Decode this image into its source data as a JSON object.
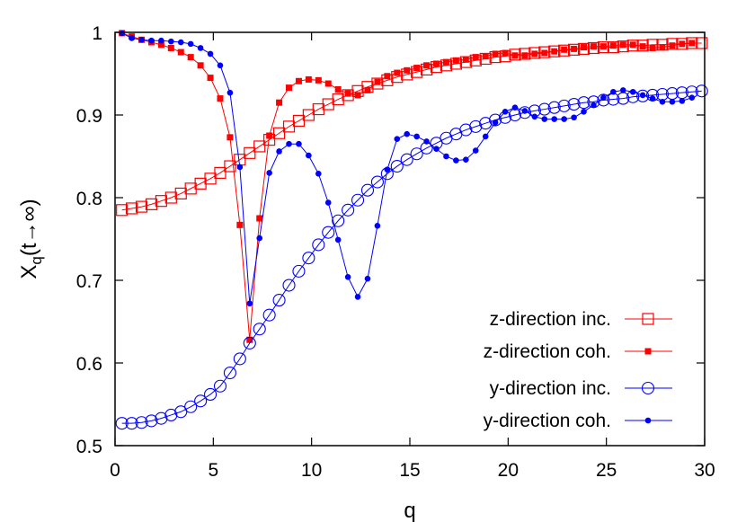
{
  "chart_data": {
    "type": "line",
    "title": "",
    "xlabel": "q",
    "ylabel_main": "X",
    "ylabel_sub": "q",
    "ylabel_rest": "(t→∞)",
    "xlim": [
      0,
      30
    ],
    "ylim": [
      0.5,
      1
    ],
    "xticks": [
      "0",
      "5",
      "10",
      "15",
      "20",
      "25",
      "30"
    ],
    "yticks": [
      "0.5",
      "0.6",
      "0.7",
      "0.8",
      "0.9",
      "1"
    ],
    "grid": false,
    "legend_position": "bottom-right",
    "q_start": 0.35,
    "q_step": 0.5,
    "series": [
      {
        "name": "z-direction inc.",
        "color": "#ff0000",
        "marker": "open-square",
        "values": [
          0.785,
          0.787,
          0.789,
          0.792,
          0.796,
          0.8,
          0.805,
          0.811,
          0.817,
          0.823,
          0.83,
          0.838,
          0.846,
          0.854,
          0.862,
          0.87,
          0.878,
          0.886,
          0.893,
          0.9,
          0.907,
          0.913,
          0.919,
          0.924,
          0.929,
          0.934,
          0.938,
          0.942,
          0.946,
          0.949,
          0.952,
          0.955,
          0.958,
          0.96,
          0.962,
          0.964,
          0.966,
          0.968,
          0.97,
          0.971,
          0.973,
          0.974,
          0.975,
          0.976,
          0.977,
          0.978,
          0.979,
          0.98,
          0.981,
          0.982,
          0.982,
          0.983,
          0.984,
          0.984,
          0.985,
          0.985,
          0.986,
          0.986,
          0.987,
          0.987
        ]
      },
      {
        "name": "z-direction coh.",
        "color": "#ff0000",
        "marker": "filled-square",
        "values": [
          0.999,
          0.995,
          0.991,
          0.988,
          0.985,
          0.981,
          0.976,
          0.97,
          0.96,
          0.945,
          0.92,
          0.873,
          0.767,
          0.628,
          0.775,
          0.875,
          0.915,
          0.933,
          0.941,
          0.943,
          0.942,
          0.938,
          0.931,
          0.926,
          0.924,
          0.93,
          0.94,
          0.947,
          0.951,
          0.954,
          0.957,
          0.96,
          0.962,
          0.964,
          0.966,
          0.967,
          0.97,
          0.971,
          0.974,
          0.975,
          0.972,
          0.972,
          0.974,
          0.975,
          0.977,
          0.979,
          0.98,
          0.982,
          0.983,
          0.983,
          0.984,
          0.985,
          0.985,
          0.983,
          0.981,
          0.982,
          0.984,
          0.986,
          0.987
        ]
      },
      {
        "name": "y-direction inc.",
        "color": "#0000ff",
        "marker": "open-circle",
        "values": [
          0.527,
          0.527,
          0.528,
          0.53,
          0.533,
          0.537,
          0.541,
          0.547,
          0.554,
          0.562,
          0.572,
          0.588,
          0.605,
          0.624,
          0.641,
          0.658,
          0.676,
          0.694,
          0.711,
          0.727,
          0.743,
          0.758,
          0.772,
          0.785,
          0.797,
          0.809,
          0.819,
          0.829,
          0.838,
          0.846,
          0.853,
          0.86,
          0.866,
          0.872,
          0.877,
          0.882,
          0.886,
          0.89,
          0.894,
          0.897,
          0.9,
          0.903,
          0.905,
          0.907,
          0.909,
          0.911,
          0.913,
          0.915,
          0.916,
          0.918,
          0.919,
          0.92,
          0.922,
          0.923,
          0.924,
          0.925,
          0.926,
          0.927,
          0.928,
          0.929
        ]
      },
      {
        "name": "y-direction coh.",
        "color": "#0000ff",
        "marker": "filled-circle",
        "values": [
          0.999,
          0.993,
          0.991,
          0.99,
          0.99,
          0.989,
          0.988,
          0.986,
          0.981,
          0.974,
          0.96,
          0.927,
          0.837,
          0.672,
          0.751,
          0.83,
          0.856,
          0.865,
          0.865,
          0.851,
          0.829,
          0.794,
          0.749,
          0.704,
          0.68,
          0.702,
          0.766,
          0.834,
          0.871,
          0.877,
          0.874,
          0.868,
          0.859,
          0.85,
          0.845,
          0.846,
          0.857,
          0.874,
          0.891,
          0.904,
          0.909,
          0.905,
          0.898,
          0.895,
          0.895,
          0.895,
          0.897,
          0.904,
          0.912,
          0.921,
          0.928,
          0.93,
          0.928,
          0.924,
          0.92,
          0.916,
          0.916,
          0.917,
          0.921
        ]
      }
    ]
  }
}
